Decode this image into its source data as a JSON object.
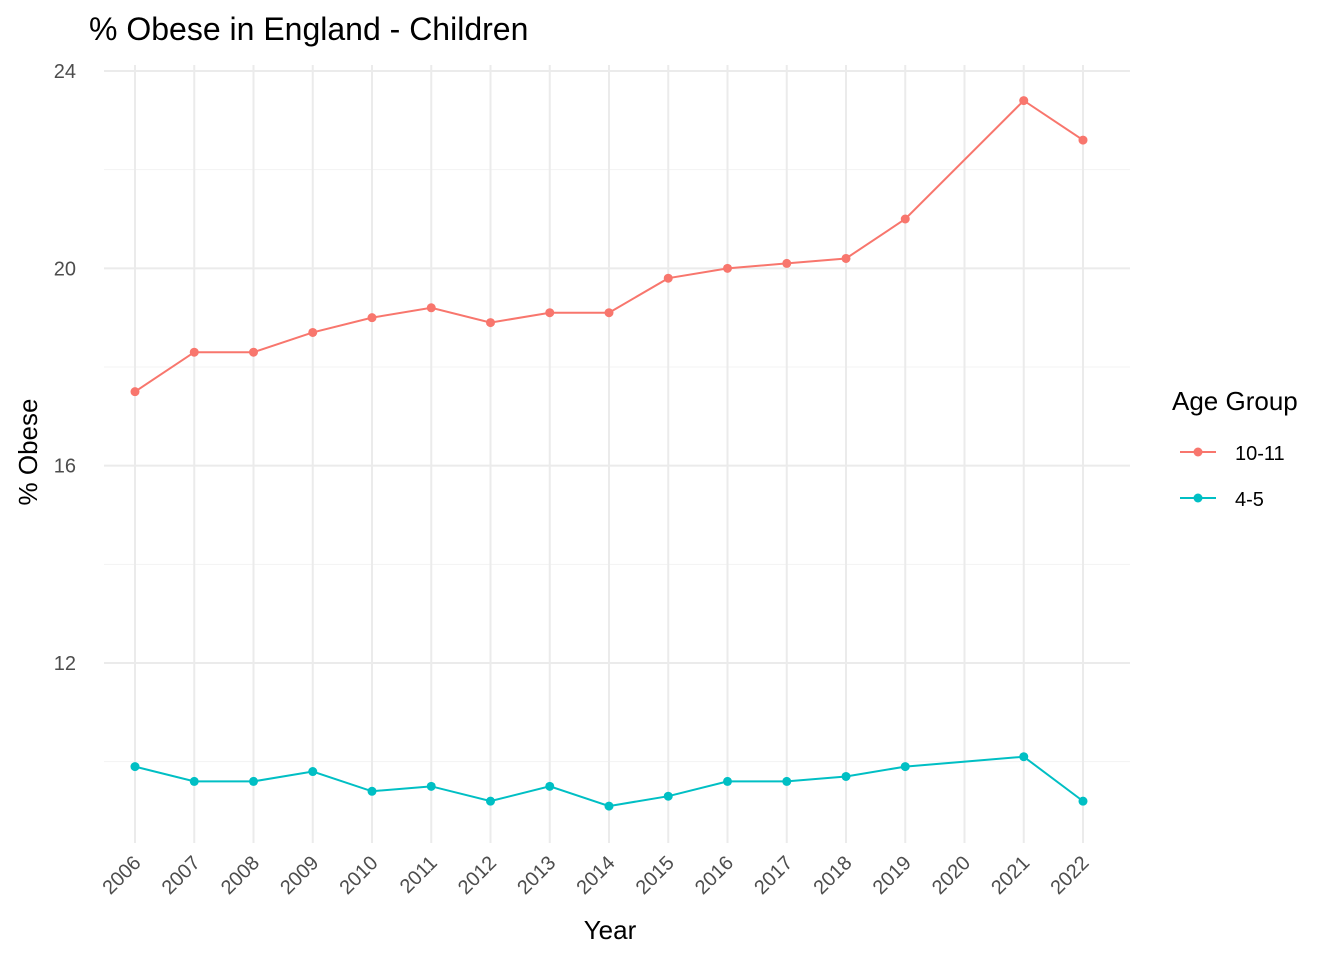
{
  "chart_data": {
    "type": "line",
    "title": "% Obese in England  - Children",
    "xlabel": "Year",
    "ylabel": "% Obese",
    "x": [
      "2006",
      "2007",
      "2008",
      "2009",
      "2010",
      "2011",
      "2012",
      "2013",
      "2014",
      "2015",
      "2016",
      "2017",
      "2018",
      "2019",
      "2020",
      "2021",
      "2022"
    ],
    "y_ticks": [
      "12",
      "16",
      "20",
      "24"
    ],
    "ylim": [
      8.4,
      24
    ],
    "grid": true,
    "legend": {
      "title": "Age Group",
      "position": "right"
    },
    "series": [
      {
        "name": "10-11",
        "color": "#F8766D",
        "values": [
          17.5,
          18.3,
          18.3,
          18.7,
          19.0,
          19.2,
          18.9,
          19.1,
          19.1,
          19.8,
          20.0,
          20.1,
          20.2,
          21.0,
          null,
          23.4,
          22.6
        ]
      },
      {
        "name": "4-5",
        "color": "#00BFC4",
        "values": [
          9.9,
          9.6,
          9.6,
          9.8,
          9.4,
          9.5,
          9.2,
          9.5,
          9.1,
          9.3,
          9.6,
          9.6,
          9.7,
          9.9,
          null,
          10.1,
          9.2
        ]
      }
    ]
  }
}
